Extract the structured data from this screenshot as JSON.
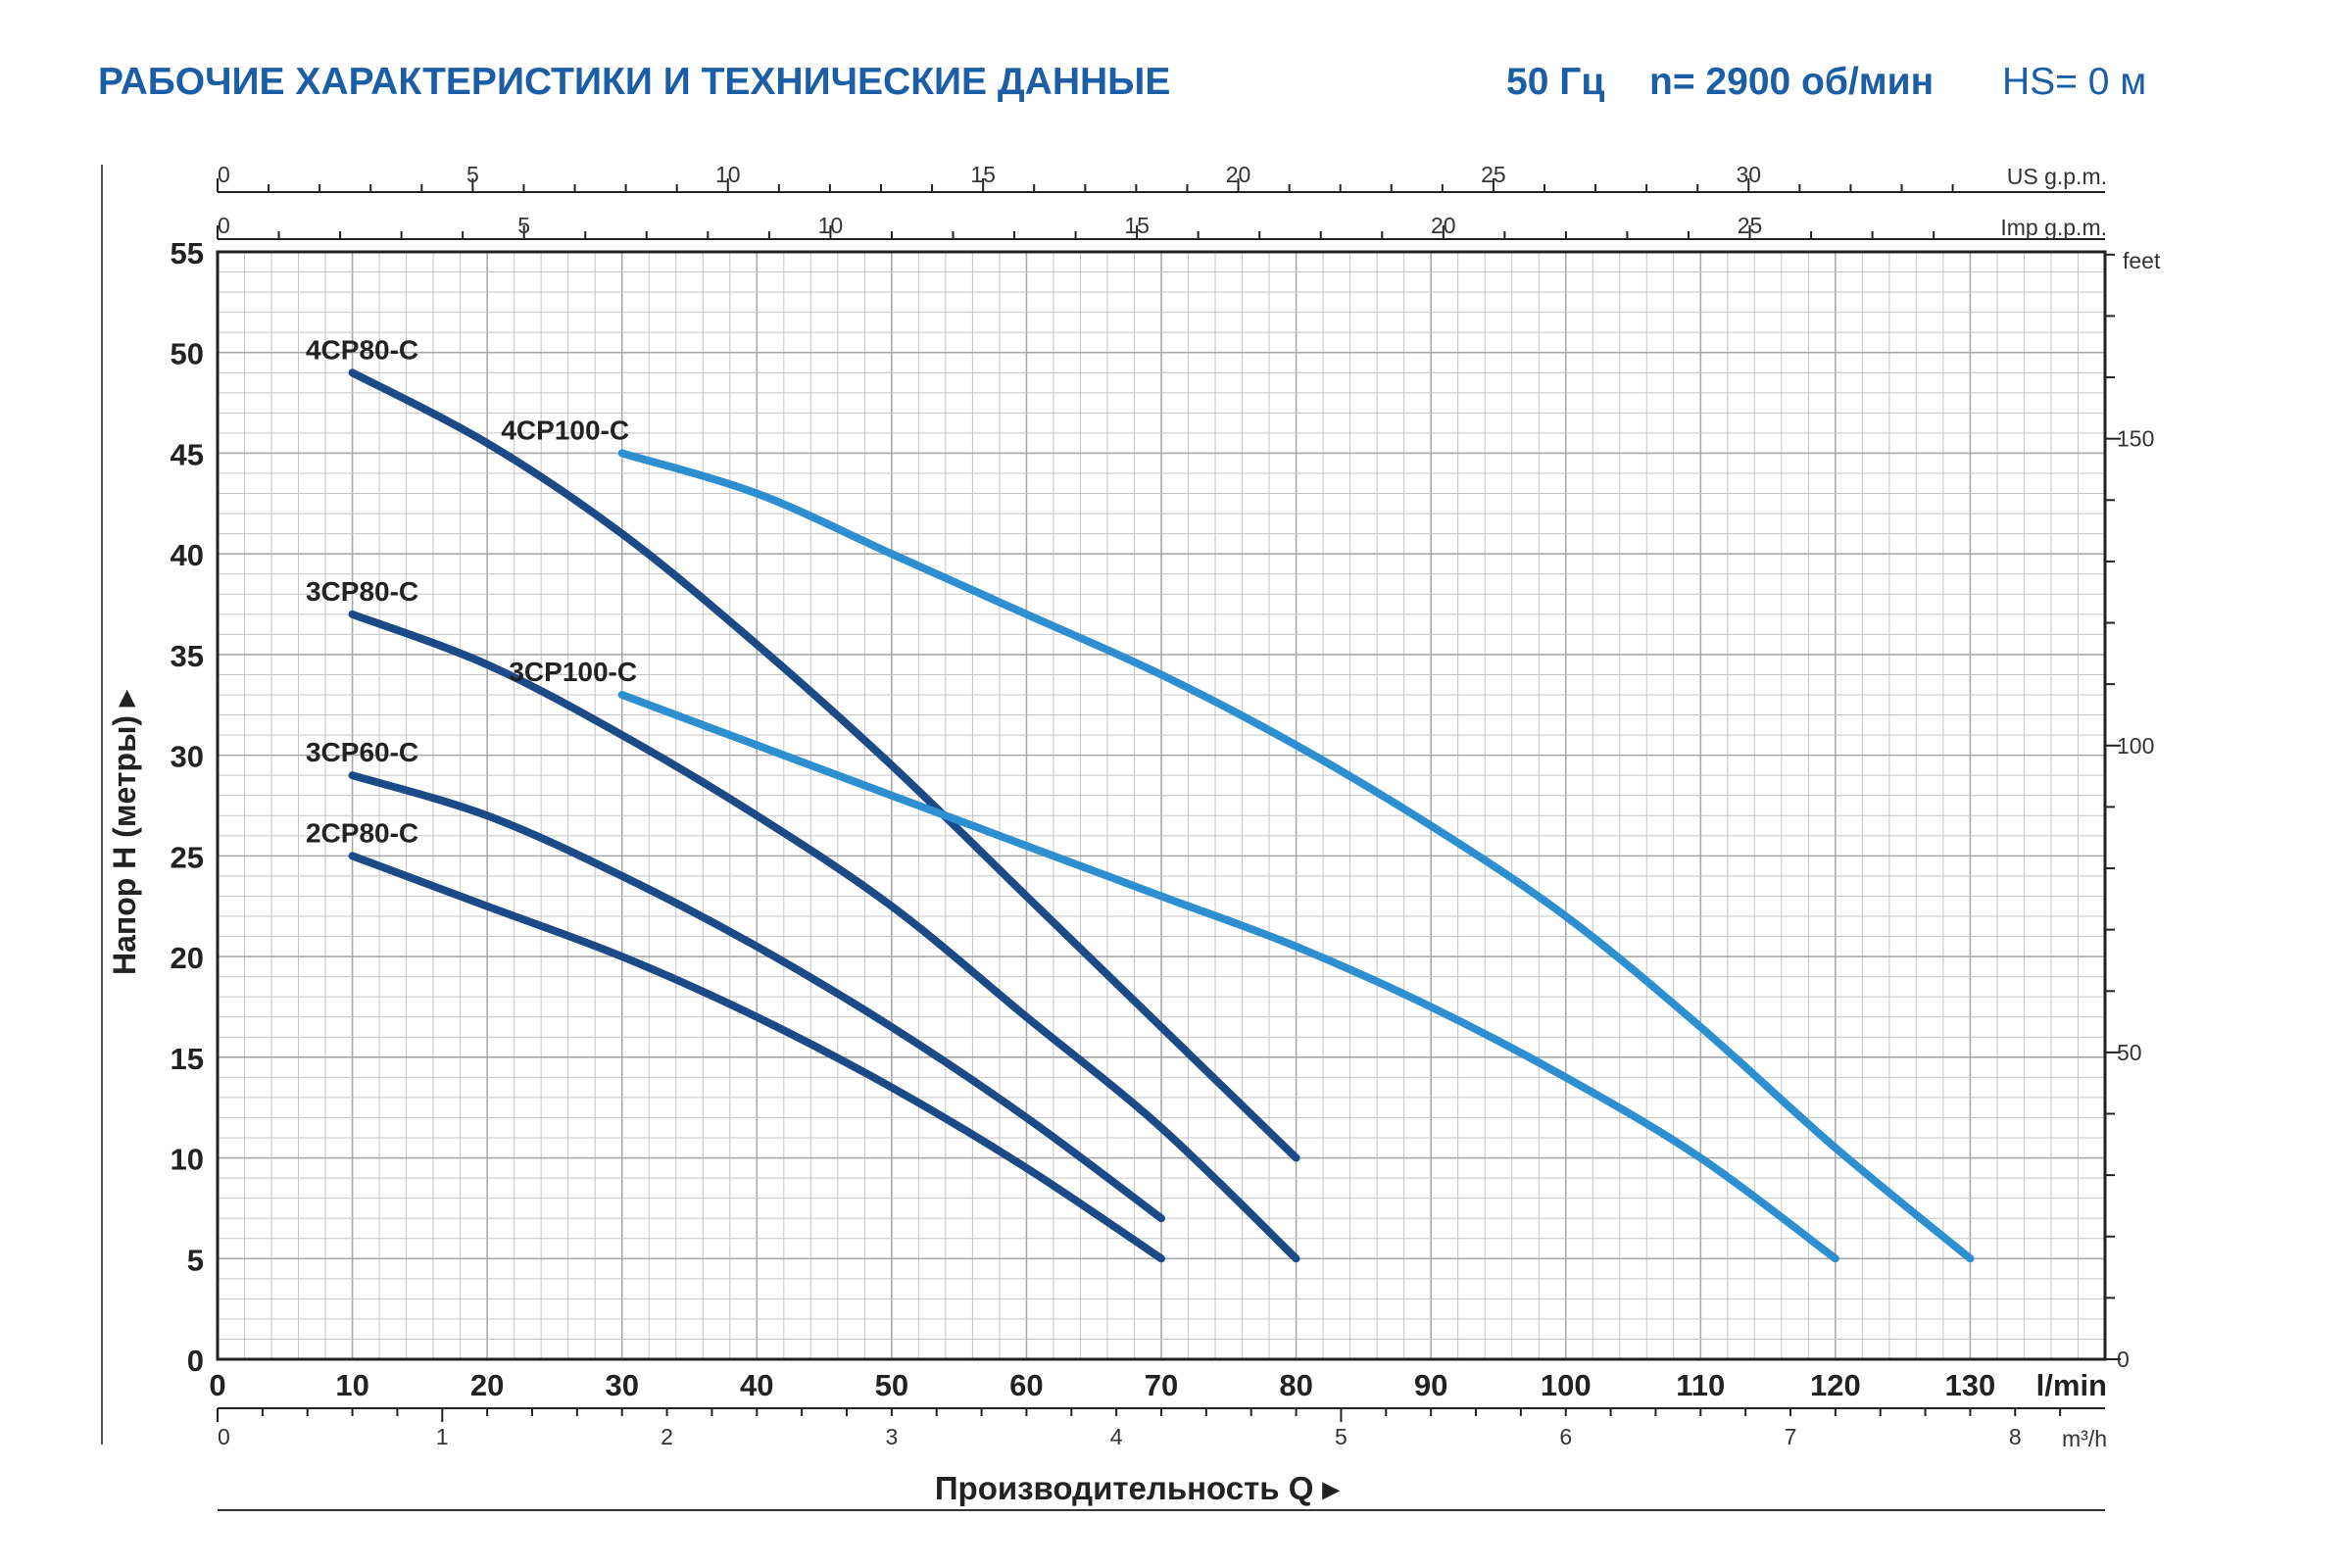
{
  "header": {
    "title": "РАБОЧИЕ ХАРАКТЕРИСТИКИ И ТЕХНИЧЕСКИЕ ДАННЫЕ",
    "frequency": "50 Гц",
    "speed": "n= 2900 об/мин",
    "hs": "HS= 0 м"
  },
  "colors": {
    "dark_series": "#1c4a87",
    "light_series": "#2d8fd0",
    "grid": "#c4c4c4",
    "title": "#1b5ea6"
  },
  "chart_data": {
    "type": "line",
    "ylabel": "Напор H (метры)",
    "xlabel": "Производительность Q",
    "xlim": [
      0,
      140
    ],
    "ylim": [
      0,
      55
    ],
    "grid": true,
    "x_unit": "l/min",
    "x_ticks": [
      0,
      10,
      20,
      30,
      40,
      50,
      60,
      70,
      80,
      90,
      100,
      110,
      120,
      130
    ],
    "y_ticks": [
      0,
      5,
      10,
      15,
      20,
      25,
      30,
      35,
      40,
      45,
      50,
      55
    ],
    "axes": {
      "us_gpm": {
        "label": "US g.p.m.",
        "ticks": [
          0,
          5,
          10,
          15,
          20,
          25,
          30
        ]
      },
      "imp_gpm": {
        "label": "Imp g.p.m.",
        "ticks": [
          0,
          5,
          10,
          15,
          20,
          25
        ]
      },
      "feet": {
        "label": "feet",
        "ticks": [
          0,
          50,
          100,
          150
        ]
      },
      "m3h": {
        "label": "m³/h",
        "ticks": [
          0,
          1,
          2,
          3,
          4,
          5,
          6,
          7,
          8
        ]
      }
    },
    "series": [
      {
        "name": "4CP80-C",
        "color": "dark",
        "x": [
          10,
          20,
          30,
          40,
          50,
          60,
          70,
          80
        ],
        "y": [
          49,
          45.5,
          41,
          35.5,
          29.5,
          23,
          16.5,
          10
        ]
      },
      {
        "name": "3CP80-C",
        "color": "dark",
        "x": [
          10,
          20,
          30,
          40,
          50,
          60,
          70,
          80
        ],
        "y": [
          37,
          34.5,
          31,
          27,
          22.5,
          17,
          11.5,
          5
        ]
      },
      {
        "name": "3CP60-C",
        "color": "dark",
        "x": [
          10,
          20,
          30,
          40,
          50,
          60,
          70
        ],
        "y": [
          29,
          27,
          24,
          20.5,
          16.5,
          12,
          7
        ]
      },
      {
        "name": "2CP80-C",
        "color": "dark",
        "x": [
          10,
          20,
          30,
          40,
          50,
          60,
          70
        ],
        "y": [
          25,
          22.5,
          20,
          17,
          13.5,
          9.5,
          5
        ]
      },
      {
        "name": "4CP100-C",
        "color": "light",
        "x": [
          30,
          40,
          50,
          60,
          70,
          80,
          90,
          100,
          110,
          120,
          130
        ],
        "y": [
          45,
          43,
          40,
          37,
          34,
          30.5,
          26.5,
          22,
          16.5,
          10.5,
          5
        ]
      },
      {
        "name": "3CP100-C",
        "color": "light",
        "x": [
          30,
          40,
          50,
          60,
          70,
          80,
          90,
          100,
          110,
          120
        ],
        "y": [
          33,
          30.5,
          28,
          25.5,
          23,
          20.5,
          17.5,
          14,
          10,
          5
        ]
      }
    ]
  }
}
